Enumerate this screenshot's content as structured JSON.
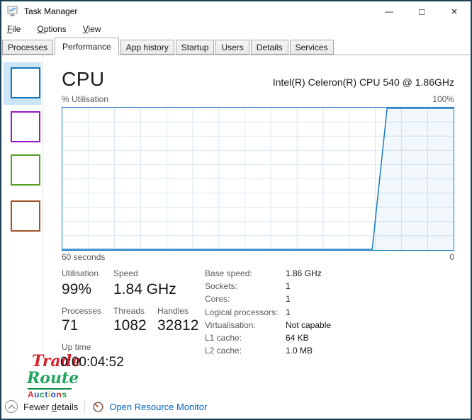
{
  "window": {
    "title": "Task Manager",
    "controls": {
      "minimize": "—",
      "maximize": "□",
      "close": "×"
    }
  },
  "menu": {
    "items": [
      {
        "accel": "F",
        "post": "ile"
      },
      {
        "accel": "O",
        "post": "ptions"
      },
      {
        "accel": "V",
        "post": "iew"
      }
    ]
  },
  "tabs": {
    "items": [
      {
        "label": "Processes",
        "active": false
      },
      {
        "label": "Performance",
        "active": true
      },
      {
        "label": "App history",
        "active": false
      },
      {
        "label": "Startup",
        "active": false
      },
      {
        "label": "Users",
        "active": false
      },
      {
        "label": "Details",
        "active": false
      },
      {
        "label": "Services",
        "active": false
      }
    ]
  },
  "sidebar": {
    "items": [
      {
        "name": "cpu",
        "color": "#1276b6",
        "selected": true,
        "highlight": "#cbe4f8"
      },
      {
        "name": "memory",
        "color": "#9a1bbf",
        "selected": false
      },
      {
        "name": "disk",
        "color": "#55a025",
        "selected": false
      },
      {
        "name": "ethernet",
        "color": "#9d5526",
        "selected": false
      }
    ]
  },
  "cpu": {
    "title": "CPU",
    "subtitle": "Intel(R) Celeron(R) CPU 540 @ 1.86GHz"
  },
  "graph": {
    "type": "area",
    "percent_label": "% Utilisation",
    "max_label": "100%",
    "x_left": "60 seconds",
    "x_right": "0",
    "y_range": [
      0,
      100
    ],
    "x_range_seconds": 60,
    "series": [
      [
        0,
        0
      ],
      [
        79.2,
        0
      ],
      [
        83,
        100
      ],
      [
        100,
        100
      ]
    ],
    "line_color": "#1779bd",
    "fill_color": "rgba(23,121,189,0.06)",
    "grid_color": "#d9e7f4",
    "v_gridlines": 14,
    "h_gridlines": 9
  },
  "stats": {
    "utilisation": {
      "label": "Utilisation",
      "value": "99%"
    },
    "speed": {
      "label": "Speed",
      "value": "1.84 GHz"
    },
    "processes": {
      "label": "Processes",
      "value": "71"
    },
    "threads": {
      "label": "Threads",
      "value": "1082"
    },
    "handles": {
      "label": "Handles",
      "value": "32812"
    },
    "uptime": {
      "label": "Up time",
      "value": "0:00:04:52"
    },
    "details": [
      {
        "label": "Base speed:",
        "value": "1.86 GHz"
      },
      {
        "label": "Sockets:",
        "value": "1"
      },
      {
        "label": "Cores:",
        "value": "1"
      },
      {
        "label": "Logical processors:",
        "value": "1"
      },
      {
        "label": "Virtualisation:",
        "value": "Not capable"
      },
      {
        "label": "L1 cache:",
        "value": "64 KB"
      },
      {
        "label": "L2 cache:",
        "value": "1.0 MB"
      }
    ]
  },
  "watermark": {
    "trade": "Trade",
    "route": "Route",
    "auctions": [
      {
        "ch": "A",
        "color": "#d92b2b"
      },
      {
        "ch": "u",
        "color": "#2156c8"
      },
      {
        "ch": "c",
        "color": "#15a04a"
      },
      {
        "ch": "t",
        "color": "#2156c8"
      },
      {
        "ch": "i",
        "color": "#e6b50a"
      },
      {
        "ch": "o",
        "color": "#2156c8"
      },
      {
        "ch": "n",
        "color": "#d92b2b"
      },
      {
        "ch": "s",
        "color": "#15a04a"
      }
    ]
  },
  "footer": {
    "fewer": {
      "pre": "Fewer ",
      "accel": "d",
      "post": "etails"
    },
    "link": "Open Resource Monitor"
  },
  "colors": {
    "window_border": "#1d4257",
    "graph_line": "#1779bd",
    "selected_highlight": "#cbe4f8",
    "link": "#0563c1",
    "label_gray": "#58595b"
  }
}
